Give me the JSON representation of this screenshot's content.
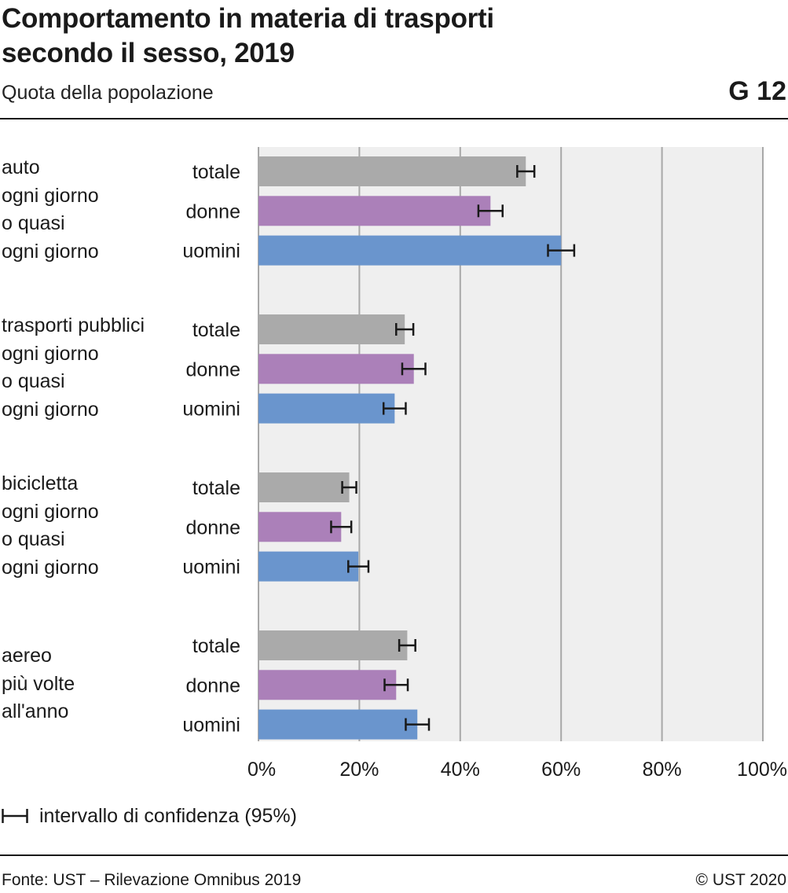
{
  "header": {
    "title_line1": "Comportamento in materia di trasporti",
    "title_line2": "secondo il sesso, 2019",
    "subtitle": "Quota della popolazione",
    "code": "G 12"
  },
  "chart_data": {
    "type": "bar",
    "orientation": "horizontal",
    "xlim": [
      0,
      100
    ],
    "x_ticks": [
      "0%",
      "20%",
      "40%",
      "60%",
      "80%",
      "100%"
    ],
    "x_tick_values": [
      0,
      20,
      40,
      60,
      80,
      100
    ],
    "grid": true,
    "colors": {
      "totale": "#aaaaaa",
      "donne": "#ab80b9",
      "uomini": "#6a95cd",
      "plot_bg": "#efefef",
      "gridline": "#a8a8a8",
      "errorbar": "#1a1a1a"
    },
    "groups": [
      {
        "label_lines": [
          "auto",
          "ogni giorno",
          "o quasi",
          "ogni giorno"
        ],
        "bars": [
          {
            "label": "totale",
            "value": 53.0,
            "ci": [
              51.3,
              54.7
            ]
          },
          {
            "label": "donne",
            "value": 46.0,
            "ci": [
              43.6,
              48.4
            ]
          },
          {
            "label": "uomini",
            "value": 60.0,
            "ci": [
              57.4,
              62.6
            ]
          }
        ]
      },
      {
        "label_lines": [
          "trasporti pubblici",
          "ogni giorno",
          "o quasi",
          "ogni giorno"
        ],
        "bars": [
          {
            "label": "totale",
            "value": 29.0,
            "ci": [
              27.3,
              30.7
            ]
          },
          {
            "label": "donne",
            "value": 30.8,
            "ci": [
              28.5,
              33.1
            ]
          },
          {
            "label": "uomini",
            "value": 27.0,
            "ci": [
              24.8,
              29.2
            ]
          }
        ]
      },
      {
        "label_lines": [
          "bicicletta",
          "ogni giorno",
          "o quasi",
          "ogni giorno"
        ],
        "bars": [
          {
            "label": "totale",
            "value": 18.0,
            "ci": [
              16.6,
              19.4
            ]
          },
          {
            "label": "donne",
            "value": 16.4,
            "ci": [
              14.4,
              18.4
            ]
          },
          {
            "label": "uomini",
            "value": 19.8,
            "ci": [
              17.8,
              21.8
            ]
          }
        ]
      },
      {
        "label_lines": [
          "aereo",
          "più volte",
          "all'anno"
        ],
        "bars": [
          {
            "label": "totale",
            "value": 29.5,
            "ci": [
              27.9,
              31.1
            ]
          },
          {
            "label": "donne",
            "value": 27.3,
            "ci": [
              25.0,
              29.6
            ]
          },
          {
            "label": "uomini",
            "value": 31.5,
            "ci": [
              29.2,
              33.8
            ]
          }
        ]
      }
    ]
  },
  "legend": {
    "text": "intervallo di confidenza (95%)"
  },
  "footer": {
    "source": "Fonte: UST – Rilevazione Omnibus 2019",
    "copyright": "© UST 2020"
  }
}
